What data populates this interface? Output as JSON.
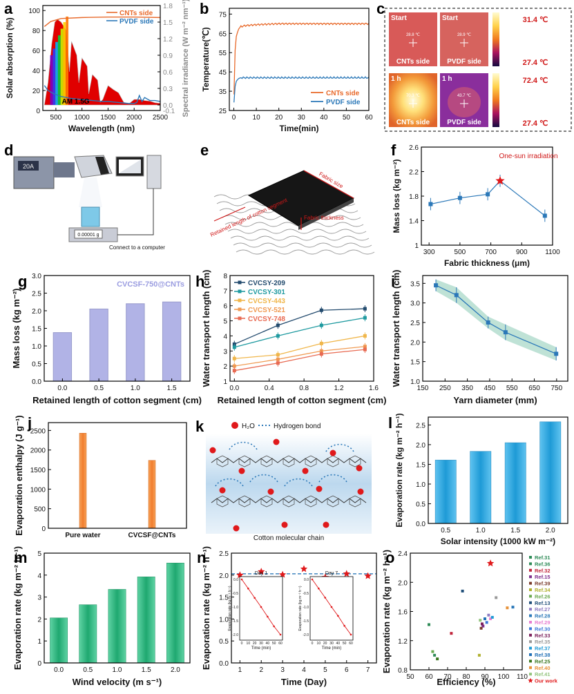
{
  "panel_labels": [
    "a",
    "b",
    "c",
    "d",
    "e",
    "f",
    "g",
    "h",
    "i",
    "j",
    "k",
    "l",
    "m",
    "n",
    "o"
  ],
  "chart_data": [
    {
      "id": "a",
      "type": "line",
      "xlabel": "Wavelength (nm)",
      "ylabel": "Solar absorption (%)",
      "y2label": "Spectral irradiance (W m⁻² nm⁻¹)",
      "xlim": [
        250,
        2500
      ],
      "ylim": [
        0,
        105
      ],
      "y2lim": [
        -0.1,
        1.8
      ],
      "xticks": [
        500,
        1000,
        1500,
        2000,
        2500
      ],
      "yticks": [
        0,
        20,
        40,
        60,
        80,
        100
      ],
      "y2ticks": [
        "-0.1",
        "0.0",
        "0.3",
        "0.6",
        "0.9",
        "1.2",
        "1.5",
        "1.8"
      ],
      "annotation": "AM 1.5G",
      "series": [
        {
          "name": "CNTs side",
          "color": "#e8692a",
          "x": [
            280,
            400,
            600,
            1000,
            1500,
            2000,
            2500
          ],
          "y": [
            84,
            89,
            92,
            93,
            93.5,
            93.5,
            93
          ]
        },
        {
          "name": "PVDF side",
          "color": "#2b78b8",
          "x": [
            280,
            350,
            450,
            600,
            800,
            1000,
            1200,
            1400,
            1500,
            1700,
            1900,
            2000,
            2050,
            2100,
            2150,
            2200,
            2300,
            2400,
            2500
          ],
          "y": [
            25,
            20,
            17,
            14,
            12,
            11,
            10,
            9,
            9,
            8,
            7,
            7,
            8,
            15,
            9,
            13,
            10,
            10,
            9
          ]
        },
        {
          "name": "Spectral irradiance",
          "color": "#e00000",
          "x": [
            280,
            350,
            420,
            480,
            530,
            600,
            700,
            760,
            800,
            900,
            940,
            1000,
            1100,
            1130,
            1200,
            1300,
            1350,
            1400,
            1500,
            1600,
            1700,
            1800,
            1900,
            2000,
            2100,
            2200,
            2300,
            2400,
            2500
          ],
          "y": [
            0.0,
            0.4,
            1.1,
            1.5,
            1.55,
            1.5,
            1.35,
            0.6,
            1.15,
            0.9,
            0.4,
            0.85,
            0.7,
            0.2,
            0.55,
            0.45,
            0.05,
            0.1,
            0.35,
            0.28,
            0.22,
            0.05,
            0.02,
            0.1,
            0.1,
            0.08,
            0.07,
            0.04,
            0.03
          ]
        }
      ]
    },
    {
      "id": "b",
      "type": "line",
      "xlabel": "Time(min)",
      "ylabel": "Temperature(℃)",
      "xlim": [
        -2,
        60
      ],
      "ylim": [
        25,
        78
      ],
      "xticks": [
        0,
        10,
        20,
        30,
        40,
        50,
        60
      ],
      "yticks": [
        25,
        35,
        45,
        55,
        65,
        75
      ],
      "series": [
        {
          "name": "CNTs side",
          "color": "#e8692a",
          "x": [
            0,
            0.5,
            1,
            2,
            3,
            5,
            10,
            20,
            30,
            40,
            50,
            60
          ],
          "y": [
            30,
            55,
            63,
            67,
            68.5,
            69,
            69.5,
            70,
            70,
            70,
            70,
            70
          ]
        },
        {
          "name": "PVDF side",
          "color": "#2b78b8",
          "x": [
            0,
            0.5,
            1,
            2,
            3,
            5,
            10,
            20,
            30,
            40,
            50,
            60
          ],
          "y": [
            28,
            37,
            40,
            41.5,
            42,
            42,
            42,
            42,
            42,
            42,
            42,
            42
          ]
        }
      ]
    },
    {
      "id": "c",
      "type": "heatmap",
      "scales": [
        {
          "max": "31.4 ℃",
          "min": "27.4 ℃"
        },
        {
          "max": "72.4 ℃",
          "min": "27.4 ℃"
        }
      ],
      "cells": [
        {
          "time": "Start",
          "side": "CNTs side",
          "reading": "28.8 ℃"
        },
        {
          "time": "Start",
          "side": "PVDF side",
          "reading": "28.9 ℃"
        },
        {
          "time": "1 h",
          "side": "CNTs side",
          "reading": "70.3 ℃"
        },
        {
          "time": "1 h",
          "side": "PVDF side",
          "reading": "43.7 ℃"
        }
      ]
    },
    {
      "id": "f",
      "type": "scatter",
      "xlabel": "Fabric thickness (μm)",
      "ylabel": "Mass loss (kg m⁻²)",
      "xlim": [
        250,
        1100
      ],
      "ylim": [
        1.0,
        2.6
      ],
      "xticks": [
        300,
        500,
        700,
        900,
        1100
      ],
      "yticks": [
        1.0,
        1.4,
        1.8,
        2.2,
        2.6
      ],
      "annotation": "One-sun irradiation",
      "x": [
        310,
        500,
        680,
        760,
        1050
      ],
      "y": [
        1.67,
        1.77,
        1.83,
        2.05,
        1.48
      ],
      "err": [
        0.1,
        0.1,
        0.1,
        0.1,
        0.1
      ],
      "highlight_index": 3
    },
    {
      "id": "g",
      "type": "bar",
      "xlabel": "Retained length of cotton segment (cm)",
      "ylabel": "Mass loss (kg m⁻²)",
      "categories": [
        "0.0",
        "0.5",
        "1.0",
        "1.5"
      ],
      "values": [
        1.38,
        2.05,
        2.2,
        2.25
      ],
      "ylim": [
        0,
        3.0
      ],
      "yticks": [
        "0.0",
        "0.5",
        "1.0",
        "1.5",
        "2.0",
        "2.5",
        "3.0"
      ],
      "annotation": "CVCSF-750@CNTs"
    },
    {
      "id": "h",
      "type": "line",
      "xlabel": "Retained length of cotton segment (cm)",
      "ylabel": "Water transport length (cm)",
      "xlim": [
        -0.05,
        1.6
      ],
      "ylim": [
        1,
        8
      ],
      "xticks": [
        "0.0",
        "0.4",
        "0.8",
        "1.2",
        "1.6"
      ],
      "yticks": [
        1,
        2,
        3,
        4,
        5,
        6,
        7,
        8
      ],
      "x": [
        0,
        0.5,
        1.0,
        1.5
      ],
      "series": [
        {
          "name": "CVCSY-209",
          "color": "#234b6e",
          "values": [
            3.45,
            4.7,
            5.7,
            5.8
          ]
        },
        {
          "name": "CVCSY-301",
          "color": "#1f9aa0",
          "values": [
            3.25,
            4.0,
            4.7,
            5.2
          ]
        },
        {
          "name": "CVCSY-443",
          "color": "#f0b64a",
          "values": [
            2.5,
            2.75,
            3.5,
            4.0
          ]
        },
        {
          "name": "CVCSY-521",
          "color": "#f09a52",
          "values": [
            2.0,
            2.45,
            3.0,
            3.3
          ]
        },
        {
          "name": "CVCSY-748",
          "color": "#e86a52",
          "values": [
            1.7,
            2.2,
            2.8,
            3.1
          ]
        }
      ]
    },
    {
      "id": "i",
      "type": "line",
      "xlabel": "Yarn diameter (mm)",
      "ylabel": "Water transport length (cm)",
      "xlim": [
        150,
        800
      ],
      "ylim": [
        1.0,
        3.7
      ],
      "xticks": [
        150,
        250,
        350,
        450,
        550,
        650,
        750
      ],
      "yticks": [
        "1.0",
        "1.5",
        "2.0",
        "2.5",
        "3.0",
        "3.5"
      ],
      "x": [
        209,
        301,
        443,
        521,
        748
      ],
      "y": [
        3.45,
        3.2,
        2.5,
        2.25,
        1.7
      ],
      "err": [
        0.15,
        0.2,
        0.15,
        0.2,
        0.17
      ]
    },
    {
      "id": "j",
      "type": "bar",
      "ylabel": "Evaporation enthalpy (J g⁻¹)",
      "categories": [
        "Pure water",
        "CVCSF@CNTs"
      ],
      "values": [
        2430,
        1735
      ],
      "ylim": [
        0,
        2700
      ],
      "yticks": [
        0,
        500,
        1000,
        1500,
        2000,
        2500
      ]
    },
    {
      "id": "k",
      "type": "diagram",
      "legend": [
        "H₂O",
        "Hydrogen bond"
      ],
      "caption": "Cotton molecular chain"
    },
    {
      "id": "l",
      "type": "bar",
      "xlabel": "Solar intensity (1000 kW m⁻²)",
      "ylabel": "Evaporation rate (kg m⁻² h⁻¹)",
      "categories": [
        "0.5",
        "1.0",
        "1.5",
        "2.0"
      ],
      "values": [
        1.61,
        1.83,
        2.05,
        2.58
      ],
      "ylim": [
        0,
        2.7
      ],
      "yticks": [
        "0.0",
        "0.5",
        "1.0",
        "1.5",
        "2.0",
        "2.5"
      ]
    },
    {
      "id": "m",
      "type": "bar",
      "xlabel": "Wind velocity (m s⁻¹)",
      "ylabel": "Evaporation rate (kg m⁻² h⁻¹)",
      "categories": [
        "0.0",
        "0.5",
        "1.0",
        "1.5",
        "2.0"
      ],
      "values": [
        2.05,
        2.65,
        3.35,
        3.92,
        4.55
      ],
      "ylim": [
        0,
        5
      ],
      "yticks": [
        0,
        1,
        2,
        3,
        4,
        5
      ]
    },
    {
      "id": "n",
      "type": "scatter",
      "xlabel": "Time (Day)",
      "ylabel": "Evaporation rate (kg m⁻² h⁻¹)",
      "xlim": [
        0.6,
        7.4
      ],
      "ylim": [
        0,
        2.5
      ],
      "xticks": [
        1,
        2,
        3,
        4,
        5,
        6,
        7
      ],
      "yticks": [
        "0.0",
        "0.5",
        "1.0",
        "1.5",
        "2.0",
        "2.5"
      ],
      "x": [
        1,
        2,
        3,
        4,
        5,
        6,
        7
      ],
      "y": [
        2.0,
        2.08,
        2.01,
        2.14,
        1.95,
        2.03,
        1.98
      ],
      "reference": 2.03,
      "insets": [
        {
          "title": "Day 1",
          "xlabel": "Time (min)",
          "ylabel": "Evaporation rate (kg m⁻² h⁻¹)",
          "xticks": [
            0,
            10,
            20,
            30,
            40,
            50,
            60
          ],
          "yticks": [
            "0.0",
            "-0.5",
            "-1.0",
            "-1.5",
            "-2.0"
          ],
          "x": [
            0,
            10,
            20,
            30,
            40,
            50,
            60
          ],
          "y": [
            0,
            -0.33,
            -0.67,
            -1.0,
            -1.35,
            -1.7,
            -2.0
          ]
        },
        {
          "title": "Day 7",
          "xlabel": "Time (min)",
          "ylabel": "Evaporation rate (kg m⁻² h⁻¹)",
          "xticks": [
            0,
            10,
            20,
            30,
            40,
            50,
            60
          ],
          "yticks": [
            "0.0",
            "-0.5",
            "-1.0",
            "-1.5",
            "-2.0"
          ],
          "x": [
            0,
            10,
            20,
            30,
            40,
            50,
            60
          ],
          "y": [
            0,
            -0.33,
            -0.66,
            -1.0,
            -1.32,
            -1.68,
            -2.0
          ]
        }
      ]
    },
    {
      "id": "o",
      "type": "scatter",
      "xlabel": "Efficiency (%)",
      "ylabel": "Evaporation rate (kg m⁻² h⁻¹)",
      "xlim": [
        50,
        110
      ],
      "ylim": [
        0.8,
        2.4
      ],
      "xticks": [
        50,
        60,
        70,
        80,
        90,
        100,
        110
      ],
      "yticks": [
        "0.8",
        "1.2",
        "1.6",
        "2.0",
        "2.4"
      ],
      "points": [
        {
          "name": "Ref.31",
          "color": "#2e8b57",
          "x": 63,
          "y": 1.0
        },
        {
          "name": "Ref.36",
          "color": "#2e8b57",
          "x": 60,
          "y": 1.42
        },
        {
          "name": "Ref.32",
          "color": "#c0243a",
          "x": 72,
          "y": 1.3
        },
        {
          "name": "Ref.15",
          "color": "#7d2d8c",
          "x": 89,
          "y": 1.4
        },
        {
          "name": "Ref.39",
          "color": "#7a3b2a",
          "x": 88,
          "y": 1.37
        },
        {
          "name": "Ref.34",
          "color": "#b0b02e",
          "x": 87,
          "y": 1.0
        },
        {
          "name": "Ref.26",
          "color": "#6aa84f",
          "x": 62,
          "y": 1.05
        },
        {
          "name": "Ref.13",
          "color": "#1f4e79",
          "x": 78,
          "y": 1.88
        },
        {
          "name": "Ref.27",
          "color": "#8e7cc3",
          "x": 92,
          "y": 1.55
        },
        {
          "name": "Ref.28",
          "color": "#2b78b8",
          "x": 105,
          "y": 1.66
        },
        {
          "name": "Ref.29",
          "color": "#e87fd0",
          "x": 93,
          "y": 1.5
        },
        {
          "name": "Ref.30",
          "color": "#3c78d8",
          "x": 91,
          "y": 1.45
        },
        {
          "name": "Ref.33",
          "color": "#7a1f5a",
          "x": 88.5,
          "y": 1.43
        },
        {
          "name": "Ref.35",
          "color": "#999999",
          "x": 96,
          "y": 1.79
        },
        {
          "name": "Ref.37",
          "color": "#1e9ad6",
          "x": 94,
          "y": 1.52
        },
        {
          "name": "Ref.38",
          "color": "#1f6fb5",
          "x": 90,
          "y": 1.5
        },
        {
          "name": "Ref.25",
          "color": "#38761d",
          "x": 64.5,
          "y": 0.95
        },
        {
          "name": "Ref.40",
          "color": "#e69138",
          "x": 102,
          "y": 1.65
        },
        {
          "name": "Ref.41",
          "color": "#93c47d",
          "x": 87.5,
          "y": 1.48
        },
        {
          "name": "Our work",
          "color": "#e0191b",
          "x": 93,
          "y": 2.26
        }
      ]
    }
  ],
  "diagram_d": {
    "meter_display": "20A",
    "balance_display": "0.00001 g",
    "caption": "Connect to a computer"
  },
  "diagram_e": {
    "labels": [
      "Fabric size",
      "Fabric thickness",
      "Retained length of cotton segment"
    ]
  }
}
